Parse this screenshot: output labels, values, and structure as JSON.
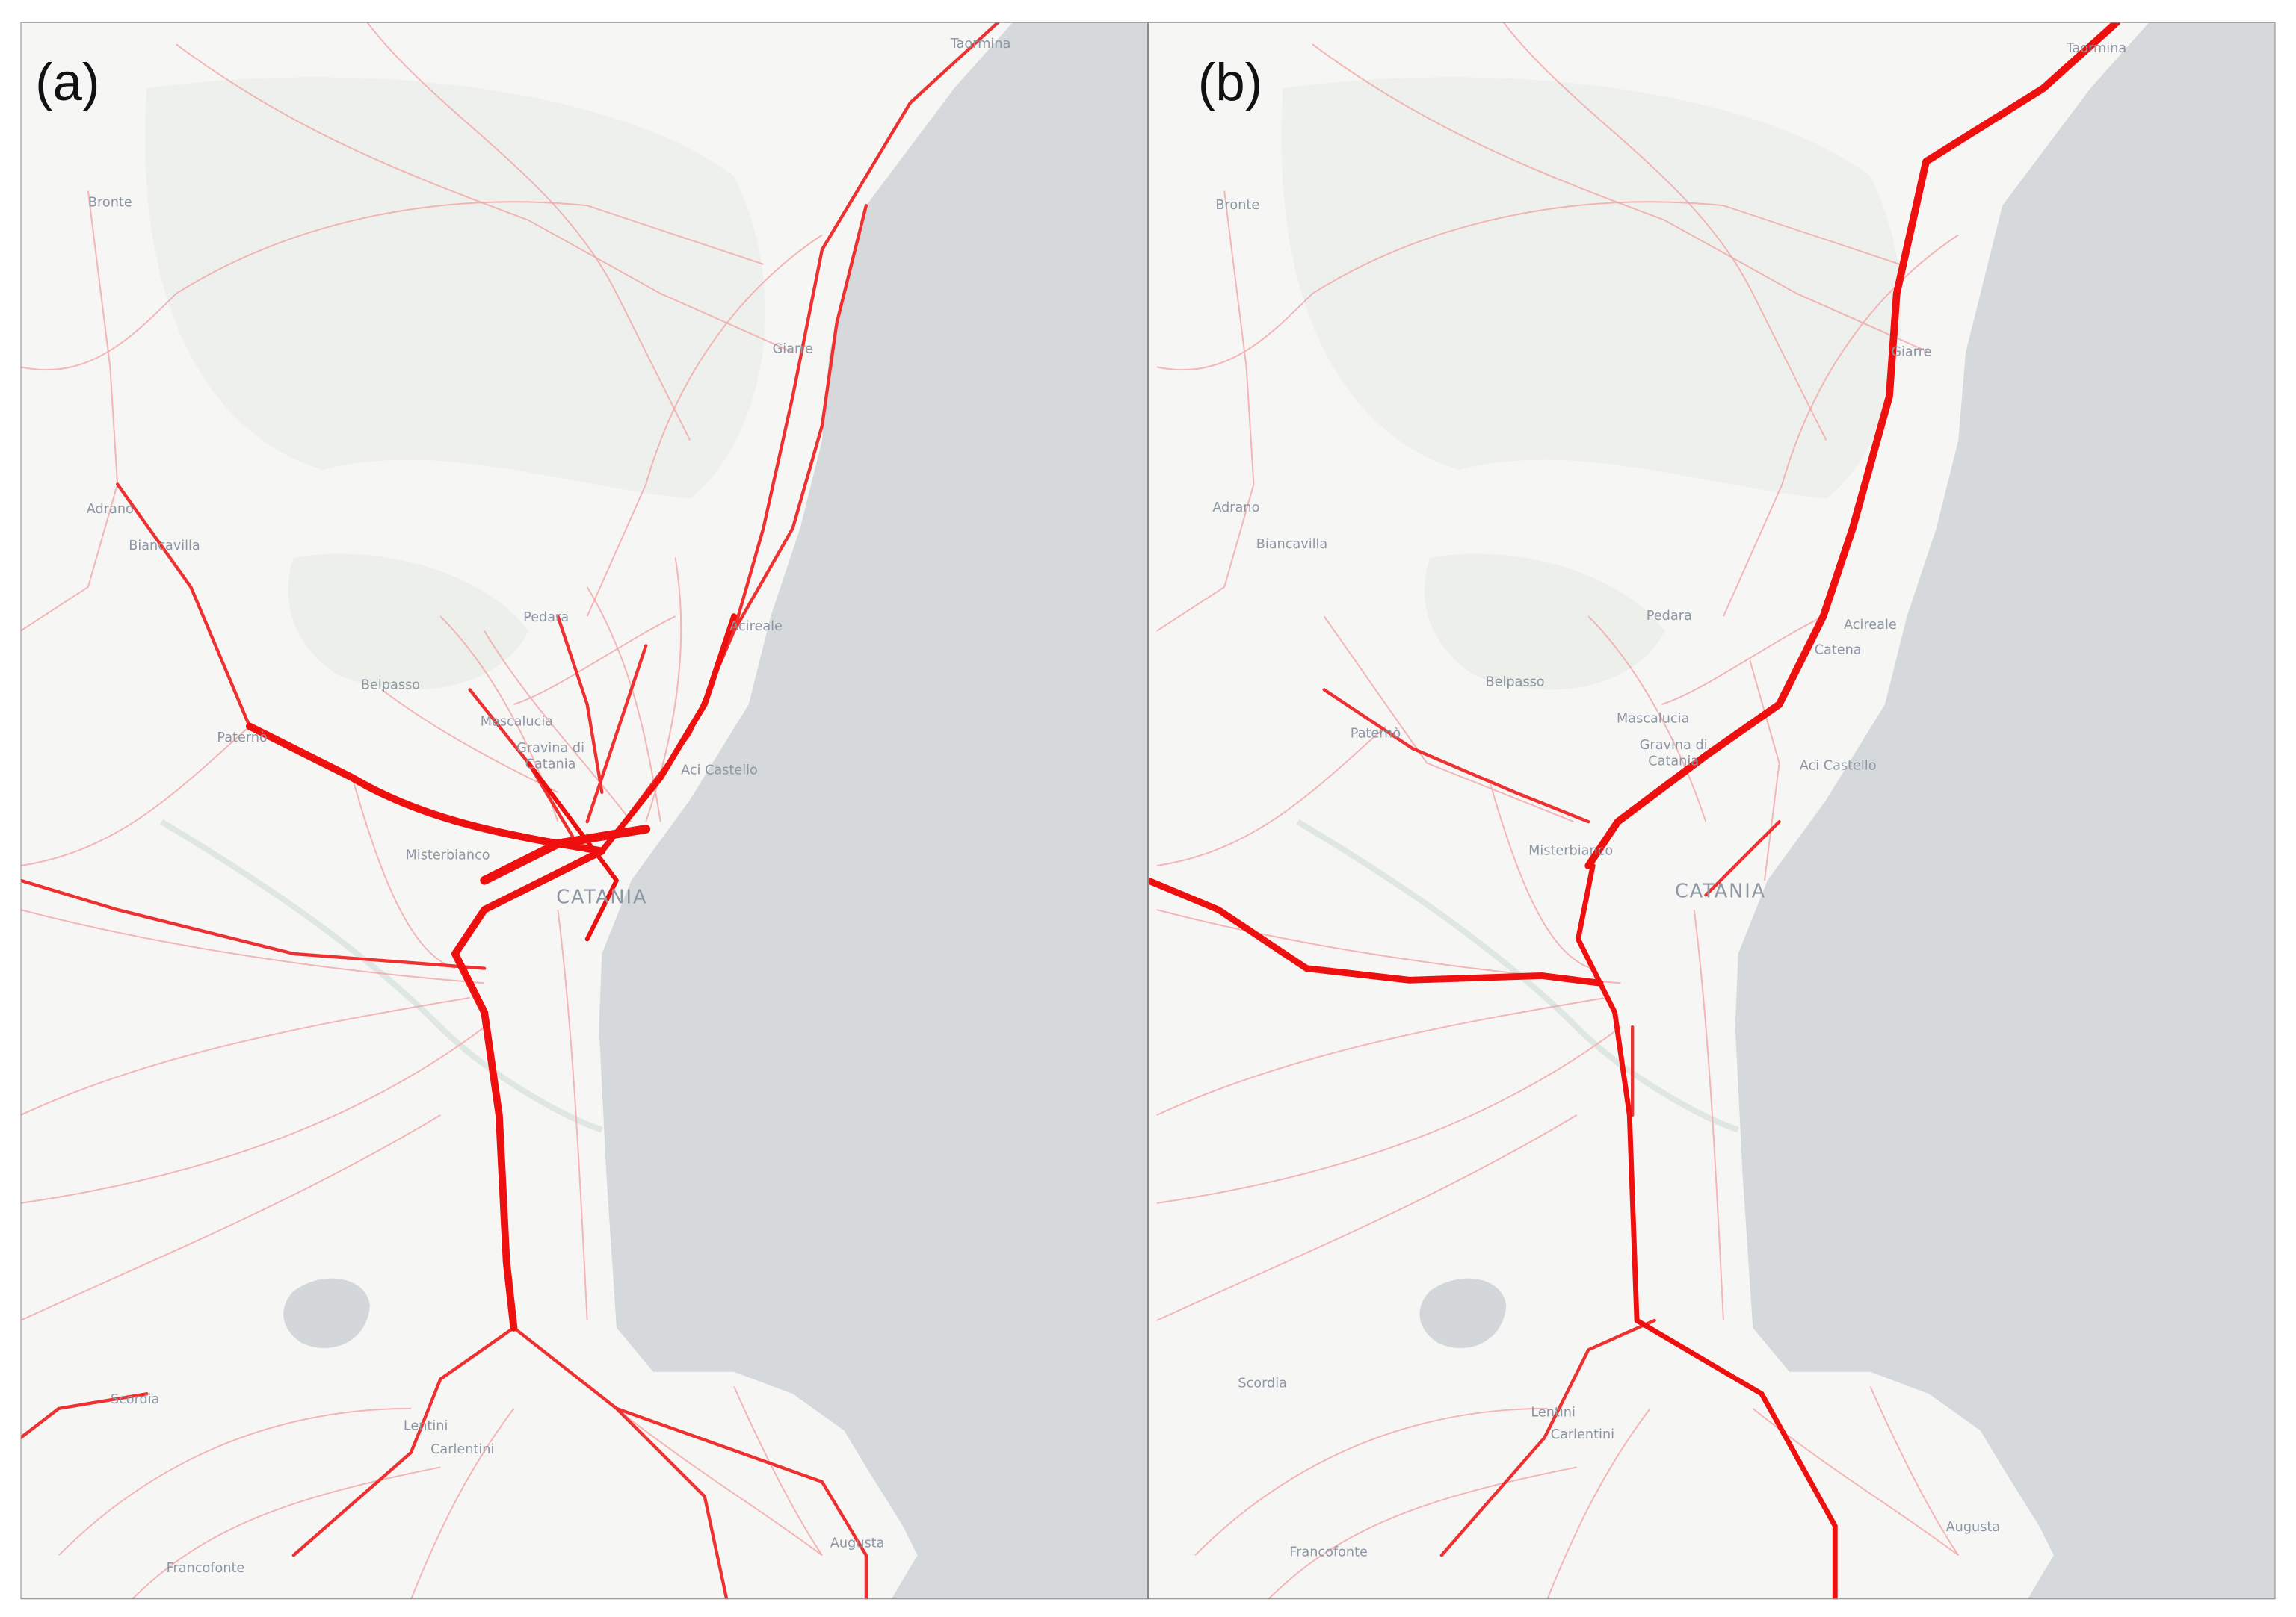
{
  "panels": [
    {
      "label": "(a)",
      "places": [
        "Taormina",
        "Bronte",
        "Giarre",
        "Adrano",
        "Biancavilla",
        "Pedara",
        "Belpasso",
        "Paternò",
        "Mascalucia",
        "Gravina di",
        "Catania",
        "Aci Castello",
        "Misterbianco",
        "CATANIA",
        "Acireale",
        "Scordia",
        "Lentini",
        "Carlentini",
        "Francofonte",
        "Augusta"
      ]
    },
    {
      "label": "(b)",
      "places": [
        "Taormina",
        "Bronte",
        "Giarre",
        "Adrano",
        "Biancavilla",
        "Pedara",
        "Belpasso",
        "Paternò",
        "Mascalucia",
        "Gravina di",
        "Catania",
        "Aci Castello",
        "Misterbianco",
        "CATANIA",
        "Acireale",
        "Catena",
        "Scordia",
        "Lentini",
        "Carlentini",
        "Francofonte",
        "Augusta"
      ]
    }
  ]
}
